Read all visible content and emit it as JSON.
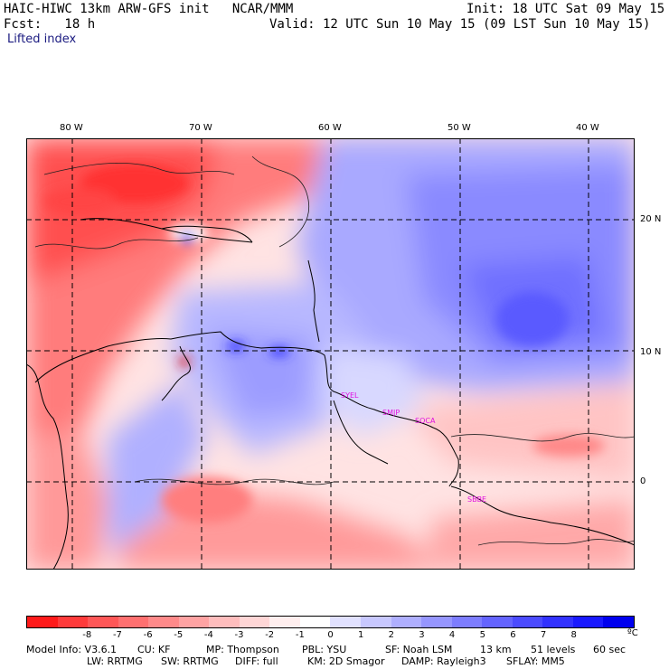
{
  "header": {
    "model_line": "HAIC-HIWC 13km ARW-GFS init   NCAR/MMM",
    "init_line": "Init: 18 UTC Sat 09 May 15",
    "fcst_line": "Fcst:   18 h",
    "valid_line": "Valid: 12 UTC Sun 10 May 15 (09 LST Sun 10 May 15)",
    "field_name": "Lifted index"
  },
  "map": {
    "lon_labels": [
      "80 W",
      "70 W",
      "60 W",
      "50 W",
      "40 W"
    ],
    "lat_labels": [
      "20 N",
      "10 N",
      "0"
    ],
    "stations": [
      "SYEL",
      "SMJP",
      "SOCA",
      "SBBE"
    ]
  },
  "colorbar": {
    "colors": [
      "#ff1a1a",
      "#ff3b3b",
      "#ff5757",
      "#ff7070",
      "#ff8a8a",
      "#ffa3a3",
      "#ffbdbd",
      "#ffd6d6",
      "#ffeeee",
      "#ffffff",
      "#e1e1ff",
      "#c8c8ff",
      "#afafff",
      "#9696ff",
      "#7d7dff",
      "#6464ff",
      "#4b4bff",
      "#3232ff",
      "#1919ff",
      "#0000ee"
    ],
    "labels": [
      "-8",
      "-7",
      "-6",
      "-5",
      "-4",
      "-3",
      "-2",
      "-1",
      "0",
      "1",
      "2",
      "3",
      "4",
      "5",
      "6",
      "7",
      "8"
    ],
    "unit": "ºC"
  },
  "footer": {
    "line1_a": "Model Info: V3.6.1",
    "line1_b": "CU: KF",
    "line1_c": "MP: Thompson",
    "line1_d": "PBL: YSU",
    "line1_e": "SF: Noah LSM",
    "line1_f": "13 km",
    "line1_g": "51 levels",
    "line1_h": "60 sec",
    "line2_a": "LW: RRTMG",
    "line2_b": "SW: RRTMG",
    "line2_c": "DIFF: full",
    "line2_d": "KM: 2D Smagor",
    "line2_e": "DAMP: Rayleigh3",
    "line2_f": "SFLAY: MM5"
  }
}
